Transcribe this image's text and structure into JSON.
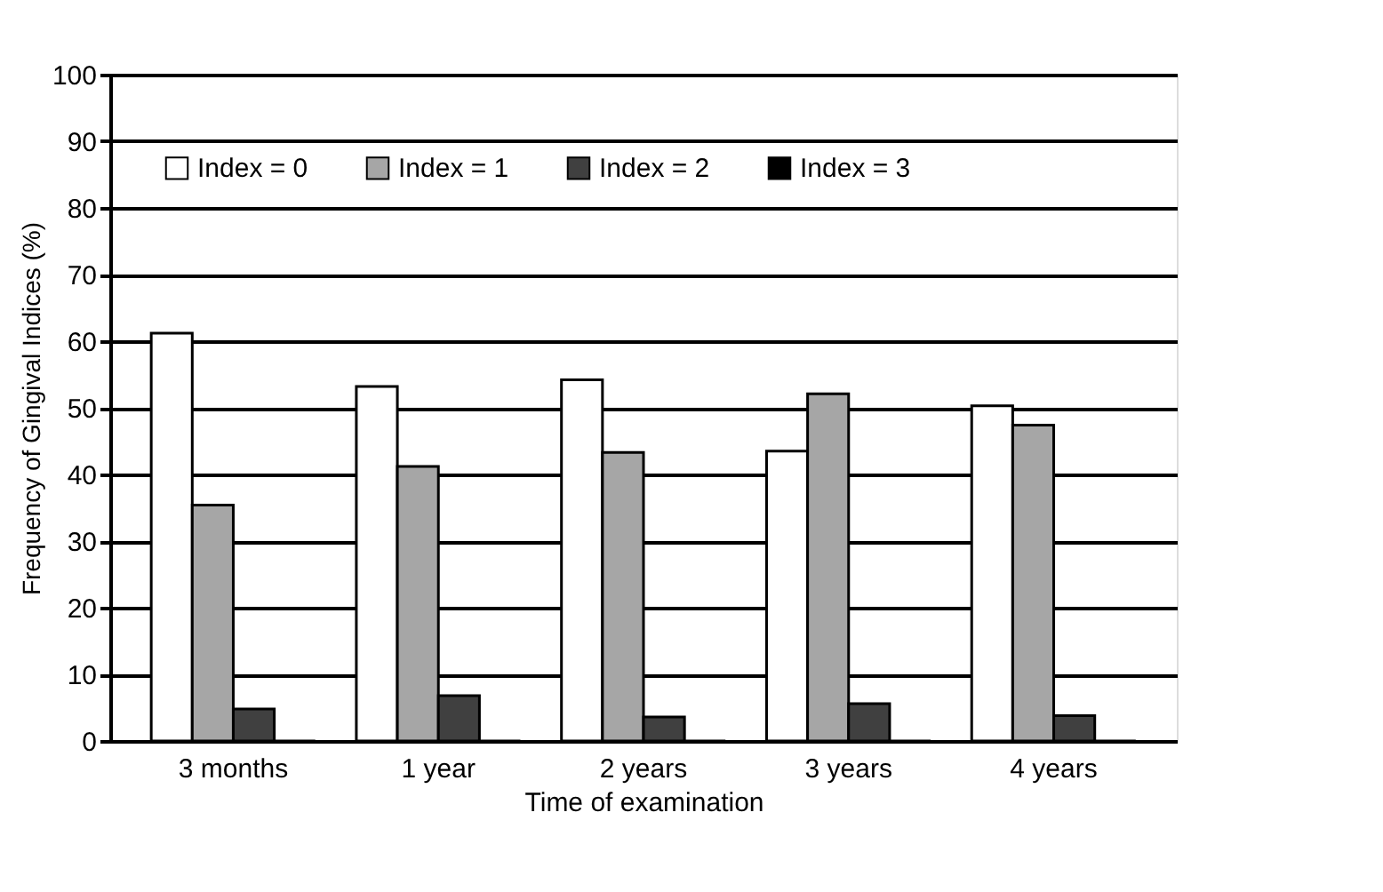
{
  "chart_data": {
    "type": "bar",
    "xlabel": "Time of examination",
    "ylabel": "Frequency of Gingival Indices (%)",
    "categories": [
      "3 months",
      "1 year",
      "2 years",
      "3 years",
      "4 years"
    ],
    "series": [
      {
        "name": "Index = 0",
        "color": "#ffffff",
        "values": [
          61.2,
          53.2,
          54.2,
          43.5,
          50.3
        ]
      },
      {
        "name": "Index = 1",
        "color": "#a6a6a6",
        "values": [
          35.4,
          41.2,
          43.3,
          52.1,
          47.4
        ]
      },
      {
        "name": "Index = 2",
        "color": "#404040",
        "values": [
          4.8,
          6.8,
          3.6,
          5.6,
          3.8
        ]
      },
      {
        "name": "Index = 3",
        "color": "#000000",
        "values": [
          0,
          0,
          0,
          0,
          0
        ]
      }
    ],
    "ylim": [
      0,
      100
    ],
    "yticks": [
      0,
      10,
      20,
      30,
      40,
      50,
      60,
      70,
      80,
      90,
      100
    ],
    "grid": "y",
    "legend": "top"
  }
}
